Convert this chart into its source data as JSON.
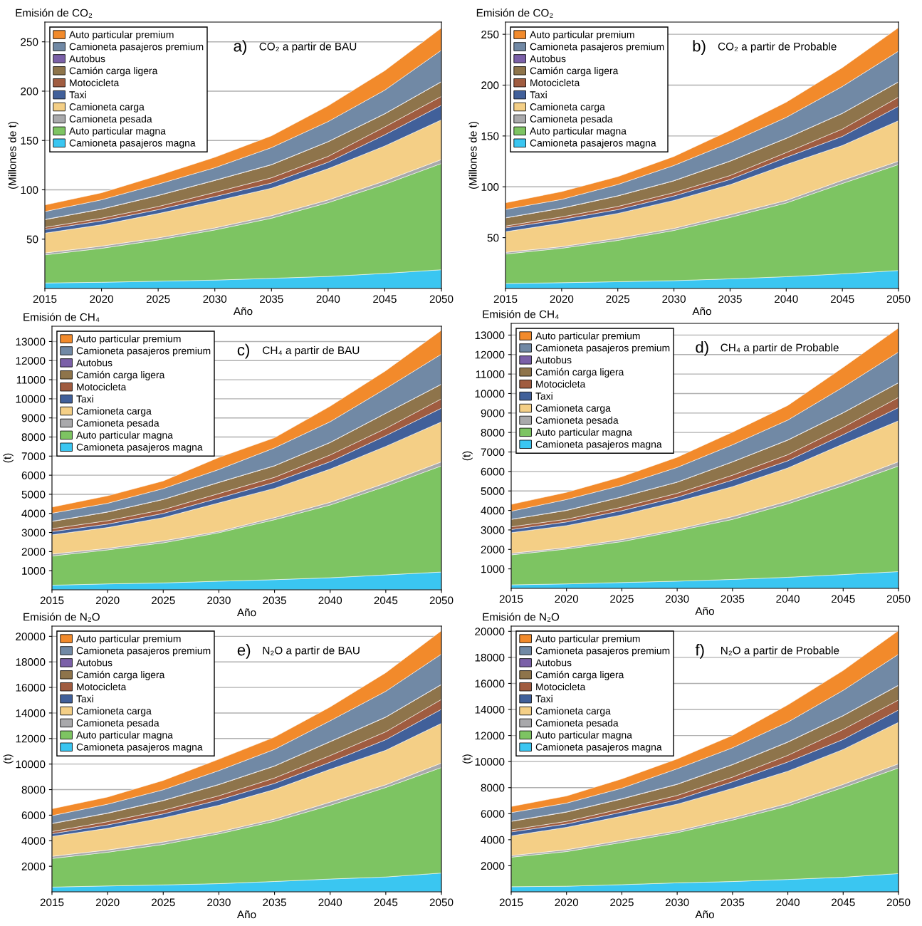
{
  "chart_data": [
    {
      "type": "area",
      "stacked": true,
      "title": "Emisión de CO₂",
      "ylabel": "(Millones de t)",
      "xlabel": "Año",
      "annotations": [
        "a)",
        "CO₂ a partir de BAU"
      ],
      "legend": "top left",
      "grid": "y",
      "x": [
        2015,
        2020,
        2025,
        2030,
        2035,
        2040,
        2045,
        2050
      ],
      "xlim": [
        2015,
        2050
      ],
      "xticks": [
        2015,
        2020,
        2025,
        2030,
        2035,
        2040,
        2045,
        2050
      ],
      "ylim": [
        0,
        270
      ],
      "yticks": [
        50,
        100,
        150,
        200,
        250
      ],
      "series": [
        {
          "name": "Camioneta pasajeros magna",
          "color": "#3ac6f1",
          "values": [
            5.6,
            6.3,
            7.4,
            8.5,
            10.3,
            12.2,
            15.3,
            19.0
          ]
        },
        {
          "name": "Auto particular magna",
          "color": "#7dc462",
          "values": [
            28.5,
            34.4,
            41.8,
            50.8,
            60.9,
            74.8,
            90.3,
            107.7
          ]
        },
        {
          "name": "Camioneta pesada",
          "color": "#a9a9ab",
          "values": [
            1.9,
            2.2,
            2.1,
            2.1,
            2.6,
            2.7,
            3.4,
            4.0
          ]
        },
        {
          "name": "Camioneta carga",
          "color": "#f4cf86",
          "values": [
            20.1,
            21.7,
            24.6,
            27.0,
            27.8,
            31.7,
            35.4,
            40.2
          ]
        },
        {
          "name": "Taxi",
          "color": "#41609a",
          "values": [
            3.7,
            3.9,
            4.0,
            4.7,
            5.3,
            6.6,
            11.4,
            14.8
          ]
        },
        {
          "name": "Motocicleta",
          "color": "#a05c40",
          "values": [
            2.1,
            2.7,
            3.2,
            4.3,
            5.3,
            5.9,
            8.0,
            9.0
          ]
        },
        {
          "name": "Camión carga ligera",
          "color": "#8e744b",
          "values": [
            7.9,
            9.2,
            11.1,
            12.1,
            13.2,
            14.8,
            13.2,
            14.8
          ]
        },
        {
          "name": "Autobus",
          "color": "#7b60a8",
          "values": [
            0.2,
            0.2,
            0.2,
            0.2,
            0.2,
            0.2,
            0.2,
            0.2
          ]
        },
        {
          "name": "Camioneta pasajeros premium",
          "color": "#7189a5",
          "values": [
            8.0,
            9.3,
            11.4,
            12.7,
            17.2,
            20.3,
            23.8,
            31.8
          ]
        },
        {
          "name": "Auto particular premium",
          "color": "#f28a2b",
          "values": [
            6.6,
            7.1,
            8.7,
            10.6,
            11.9,
            15.9,
            19.8,
            22.5
          ]
        }
      ]
    },
    {
      "type": "area",
      "stacked": true,
      "title": "Emisión de CO₂",
      "ylabel": "(Millones de t)",
      "xlabel": "Año",
      "annotations": [
        "b)",
        "CO₂ a partir de Probable"
      ],
      "legend": "top left",
      "grid": "y",
      "x": [
        2015,
        2020,
        2025,
        2030,
        2035,
        2040,
        2045,
        2050
      ],
      "xlim": [
        2015,
        2050
      ],
      "xticks": [
        2015,
        2020,
        2025,
        2030,
        2035,
        2040,
        2045,
        2050
      ],
      "ylim": [
        0,
        262
      ],
      "yticks": [
        50,
        100,
        150,
        200,
        250
      ],
      "series": [
        {
          "name": "Camioneta pasajeros magna",
          "color": "#3ac6f1",
          "values": [
            4.9,
            5.7,
            6.7,
            7.7,
            9.5,
            11.6,
            14.4,
            17.7
          ]
        },
        {
          "name": "Auto particular magna",
          "color": "#7dc462",
          "values": [
            29.0,
            33.9,
            40.6,
            49.4,
            60.4,
            72.5,
            88.9,
            104.2
          ]
        },
        {
          "name": "Camioneta pesada",
          "color": "#a9a9ab",
          "values": [
            1.6,
            1.5,
            2.1,
            2.0,
            2.6,
            2.5,
            3.1,
            3.3
          ]
        },
        {
          "name": "Camioneta carga",
          "color": "#f4cf86",
          "values": [
            20.3,
            23.2,
            24.4,
            27.5,
            29.6,
            35.3,
            34.2,
            39.8
          ]
        },
        {
          "name": "Taxi",
          "color": "#41609a",
          "values": [
            3.8,
            3.6,
            3.8,
            4.4,
            5.1,
            7.1,
            9.0,
            14.2
          ]
        },
        {
          "name": "Motocicleta",
          "color": "#a05c40",
          "values": [
            1.8,
            2.5,
            3.1,
            3.3,
            3.9,
            4.7,
            7.2,
            9.0
          ]
        },
        {
          "name": "Camión carga ligera",
          "color": "#8e744b",
          "values": [
            8.0,
            8.5,
            10.3,
            11.6,
            14.1,
            13.9,
            15.4,
            14.9
          ]
        },
        {
          "name": "Autobus",
          "color": "#7b60a8",
          "values": [
            0.2,
            0.2,
            0.2,
            0.2,
            0.2,
            0.2,
            0.2,
            0.2
          ]
        },
        {
          "name": "Camioneta pasajeros premium",
          "color": "#7189a5",
          "values": [
            8.2,
            8.5,
            11.1,
            14.9,
            18.0,
            20.5,
            26.3,
            30.1
          ]
        },
        {
          "name": "Auto particular premium",
          "color": "#f28a2b",
          "values": [
            6.5,
            7.7,
            7.7,
            8.8,
            12.1,
            14.9,
            18.5,
            23.1
          ]
        }
      ]
    },
    {
      "type": "area",
      "stacked": true,
      "title": "Emisión de CH₄",
      "ylabel": "(t)",
      "xlabel": "Año",
      "annotations": [
        "c)",
        "CH₄ a partir de BAU"
      ],
      "legend": "top left",
      "grid": "y",
      "x": [
        2015,
        2020,
        2025,
        2030,
        2035,
        2040,
        2045,
        2050
      ],
      "xlim": [
        2015,
        2050
      ],
      "xticks": [
        2015,
        2020,
        2025,
        2030,
        2035,
        2040,
        2045,
        2050
      ],
      "ylim": [
        0,
        13800
      ],
      "yticks": [
        1000,
        2000,
        3000,
        4000,
        5000,
        6000,
        7000,
        8000,
        9000,
        10000,
        11000,
        12000,
        13000
      ],
      "series": [
        {
          "name": "Camioneta pasajeros magna",
          "color": "#3ac6f1",
          "values": [
            240,
            310,
            360,
            450,
            530,
            630,
            780,
            930
          ]
        },
        {
          "name": "Auto particular magna",
          "color": "#7dc462",
          "values": [
            1530,
            1780,
            2100,
            2540,
            3140,
            3810,
            4640,
            5560
          ]
        },
        {
          "name": "Camioneta pesada",
          "color": "#a9a9ab",
          "values": [
            100,
            80,
            100,
            70,
            110,
            140,
            170,
            210
          ]
        },
        {
          "name": "Camioneta carga",
          "color": "#f4cf86",
          "values": [
            1010,
            1090,
            1220,
            1490,
            1530,
            1740,
            1920,
            2090
          ]
        },
        {
          "name": "Taxi",
          "color": "#41609a",
          "values": [
            170,
            180,
            220,
            250,
            320,
            390,
            560,
            720
          ]
        },
        {
          "name": "Motocicleta",
          "color": "#a05c40",
          "values": [
            150,
            180,
            200,
            240,
            260,
            350,
            380,
            490
          ]
        },
        {
          "name": "Camión carga ligera",
          "color": "#8e744b",
          "values": [
            380,
            450,
            530,
            580,
            600,
            650,
            790,
            760
          ]
        },
        {
          "name": "Autobus",
          "color": "#7b60a8",
          "values": [
            10,
            10,
            10,
            10,
            10,
            10,
            10,
            10
          ]
        },
        {
          "name": "Camioneta pasajeros premium",
          "color": "#7189a5",
          "values": [
            420,
            450,
            560,
            670,
            930,
            1080,
            1290,
            1570
          ]
        },
        {
          "name": "Auto particular premium",
          "color": "#f28a2b",
          "values": [
            320,
            390,
            400,
            630,
            530,
            810,
            930,
            1250
          ]
        }
      ]
    },
    {
      "type": "area",
      "stacked": true,
      "title": "Emisión de CH₄",
      "ylabel": "(t)",
      "xlabel": "Año",
      "annotations": [
        "d)",
        "CH₄ a partir de Probable"
      ],
      "legend": "top left",
      "grid": "y",
      "x": [
        2015,
        2020,
        2025,
        2030,
        2035,
        2040,
        2045,
        2050
      ],
      "xlim": [
        2015,
        2050
      ],
      "xticks": [
        2015,
        2020,
        2025,
        2030,
        2035,
        2040,
        2045,
        2050
      ],
      "ylim": [
        0,
        13600
      ],
      "yticks": [
        1000,
        2000,
        3000,
        4000,
        5000,
        6000,
        7000,
        8000,
        9000,
        10000,
        11000,
        12000,
        13000
      ],
      "series": [
        {
          "name": "Camioneta pasajeros magna",
          "color": "#3ac6f1",
          "values": [
            180,
            230,
            300,
            370,
            460,
            570,
            710,
            860
          ]
        },
        {
          "name": "Auto particular magna",
          "color": "#7dc462",
          "values": [
            1540,
            1790,
            2100,
            2580,
            3080,
            3770,
            4560,
            5420
          ]
        },
        {
          "name": "Camioneta pesada",
          "color": "#a9a9ab",
          "values": [
            80,
            70,
            100,
            80,
            140,
            140,
            160,
            220
          ]
        },
        {
          "name": "Camioneta carga",
          "color": "#f4cf86",
          "values": [
            1060,
            1130,
            1270,
            1420,
            1540,
            1700,
            1980,
            2100
          ]
        },
        {
          "name": "Taxi",
          "color": "#41609a",
          "values": [
            160,
            190,
            220,
            230,
            340,
            370,
            480,
            680
          ]
        },
        {
          "name": "Motocicleta",
          "color": "#a05c40",
          "values": [
            140,
            140,
            180,
            200,
            250,
            310,
            380,
            520
          ]
        },
        {
          "name": "Camión carga ligera",
          "color": "#8e744b",
          "values": [
            380,
            450,
            520,
            570,
            680,
            750,
            740,
            750
          ]
        },
        {
          "name": "Autobus",
          "color": "#7b60a8",
          "values": [
            10,
            10,
            10,
            10,
            10,
            10,
            10,
            10
          ]
        },
        {
          "name": "Camioneta pasajeros premium",
          "color": "#7189a5",
          "values": [
            410,
            550,
            590,
            750,
            870,
            1020,
            1310,
            1570
          ]
        },
        {
          "name": "Auto particular premium",
          "color": "#f28a2b",
          "values": [
            350,
            370,
            440,
            520,
            650,
            750,
            1010,
            1230
          ]
        }
      ]
    },
    {
      "type": "area",
      "stacked": true,
      "title": "Emisión de N₂O",
      "ylabel": "(t)",
      "xlabel": "Año",
      "annotations": [
        "e)",
        "N₂O a partir de BAU"
      ],
      "legend": "top left",
      "grid": "y",
      "x": [
        2015,
        2020,
        2025,
        2030,
        2035,
        2040,
        2045,
        2050
      ],
      "xlim": [
        2015,
        2050
      ],
      "xticks": [
        2015,
        2020,
        2025,
        2030,
        2035,
        2040,
        2045,
        2050
      ],
      "ylim": [
        0,
        20800
      ],
      "yticks": [
        2000,
        4000,
        6000,
        8000,
        10000,
        12000,
        14000,
        16000,
        18000,
        20000
      ],
      "series": [
        {
          "name": "Camioneta pasajeros magna",
          "color": "#3ac6f1",
          "values": [
            370,
            460,
            540,
            640,
            810,
            1000,
            1160,
            1470
          ]
        },
        {
          "name": "Auto particular magna",
          "color": "#7dc462",
          "values": [
            2240,
            2640,
            3170,
            3900,
            4710,
            5770,
            7010,
            8260
          ]
        },
        {
          "name": "Camioneta pesada",
          "color": "#a9a9ab",
          "values": [
            170,
            170,
            190,
            150,
            170,
            250,
            210,
            350
          ]
        },
        {
          "name": "Camioneta carga",
          "color": "#f4cf86",
          "values": [
            1560,
            1700,
            1890,
            2080,
            2320,
            2570,
            2700,
            3110
          ]
        },
        {
          "name": "Taxi",
          "color": "#41609a",
          "values": [
            210,
            270,
            310,
            420,
            480,
            560,
            830,
            1100
          ]
        },
        {
          "name": "Motocicleta",
          "color": "#a05c40",
          "values": [
            170,
            250,
            290,
            330,
            420,
            520,
            620,
            770
          ]
        },
        {
          "name": "Camión carga ligera",
          "color": "#8e744b",
          "values": [
            620,
            660,
            750,
            870,
            930,
            1080,
            1140,
            1160
          ]
        },
        {
          "name": "Autobus",
          "color": "#7b60a8",
          "values": [
            20,
            20,
            20,
            20,
            20,
            20,
            20,
            20
          ]
        },
        {
          "name": "Camioneta pasajeros premium",
          "color": "#7189a5",
          "values": [
            600,
            690,
            830,
            1080,
            1290,
            1620,
            2010,
            2370
          ]
        },
        {
          "name": "Auto particular premium",
          "color": "#f28a2b",
          "values": [
            540,
            560,
            730,
            890,
            960,
            1080,
            1450,
            1830
          ]
        }
      ]
    },
    {
      "type": "area",
      "stacked": true,
      "title": "Emisión de N₂O",
      "ylabel": "(t)",
      "xlabel": "Año",
      "annotations": [
        "f)",
        "N₂O a partir de Probable"
      ],
      "legend": "top left",
      "grid": "y",
      "x": [
        2015,
        2020,
        2025,
        2030,
        2035,
        2040,
        2045,
        2050
      ],
      "xlim": [
        2015,
        2050
      ],
      "xticks": [
        2015,
        2020,
        2025,
        2030,
        2035,
        2040,
        2045,
        2050
      ],
      "ylim": [
        0,
        20400
      ],
      "yticks": [
        2000,
        4000,
        6000,
        8000,
        10000,
        12000,
        14000,
        16000,
        18000,
        20000
      ],
      "series": [
        {
          "name": "Camioneta pasajeros magna",
          "color": "#3ac6f1",
          "values": [
            390,
            430,
            550,
            690,
            790,
            950,
            1120,
            1400
          ]
        },
        {
          "name": "Auto particular magna",
          "color": "#7dc462",
          "values": [
            2270,
            2660,
            3240,
            3850,
            4720,
            5640,
            6890,
            8110
          ]
        },
        {
          "name": "Camioneta pesada",
          "color": "#a9a9ab",
          "values": [
            120,
            140,
            160,
            140,
            160,
            200,
            240,
            320
          ]
        },
        {
          "name": "Camioneta carga",
          "color": "#f4cf86",
          "values": [
            1520,
            1720,
            1860,
            2050,
            2270,
            2470,
            2680,
            3180
          ]
        },
        {
          "name": "Taxi",
          "color": "#41609a",
          "values": [
            300,
            260,
            310,
            340,
            510,
            710,
            770,
            950
          ]
        },
        {
          "name": "Motocicleta",
          "color": "#a05c40",
          "values": [
            160,
            200,
            260,
            330,
            360,
            510,
            770,
            770
          ]
        },
        {
          "name": "Camión carga ligera",
          "color": "#8e744b",
          "values": [
            650,
            710,
            750,
            850,
            950,
            1010,
            1050,
            1120
          ]
        },
        {
          "name": "Autobus",
          "color": "#7b60a8",
          "values": [
            20,
            20,
            20,
            20,
            20,
            20,
            20,
            20
          ]
        },
        {
          "name": "Camioneta pasajeros premium",
          "color": "#7189a5",
          "values": [
            650,
            670,
            810,
            1180,
            1280,
            1520,
            1930,
            2370
          ]
        },
        {
          "name": "Auto particular premium",
          "color": "#f28a2b",
          "values": [
            470,
            550,
            710,
            750,
            950,
            1320,
            1520,
            1820
          ]
        }
      ]
    }
  ]
}
